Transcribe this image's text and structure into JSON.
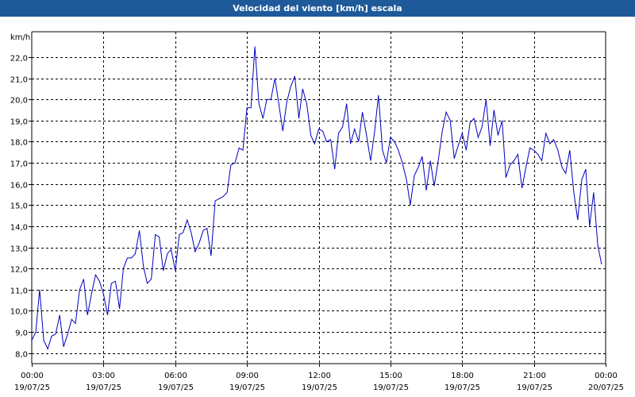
{
  "window": {
    "title": "Velocidad del viento [km/h] escala"
  },
  "chart_data": {
    "type": "line",
    "title": "Velocidad del viento [km/h] escala",
    "ylabel": "km/h",
    "ylim": [
      7.5,
      23.2
    ],
    "yticks": [
      8.0,
      9.0,
      10.0,
      11.0,
      12.0,
      13.0,
      14.0,
      15.0,
      16.0,
      17.0,
      18.0,
      19.0,
      20.0,
      21.0,
      22.0
    ],
    "ytick_labels": [
      "8,0",
      "9,0",
      "10,0",
      "11,0",
      "12,0",
      "13,0",
      "14,0",
      "15,0",
      "16,0",
      "17,0",
      "18,0",
      "19,0",
      "20,0",
      "21,0",
      "22,0"
    ],
    "xlim_hours": [
      0,
      24
    ],
    "xticks": [
      {
        "h": 0,
        "time": "00:00",
        "date": "19/07/25"
      },
      {
        "h": 3,
        "time": "03:00",
        "date": "19/07/25"
      },
      {
        "h": 6,
        "time": "06:00",
        "date": "19/07/25"
      },
      {
        "h": 9,
        "time": "09:00",
        "date": "19/07/25"
      },
      {
        "h": 12,
        "time": "12:00",
        "date": "19/07/25"
      },
      {
        "h": 15,
        "time": "15:00",
        "date": "19/07/25"
      },
      {
        "h": 18,
        "time": "18:00",
        "date": "19/07/25"
      },
      {
        "h": 21,
        "time": "21:00",
        "date": "19/07/25"
      },
      {
        "h": 24,
        "time": "00:00",
        "date": "20/07/25"
      }
    ],
    "grid": true,
    "line_color": "#0000c0",
    "series": [
      {
        "points": [
          [
            0.0,
            8.6
          ],
          [
            0.17,
            9.0
          ],
          [
            0.33,
            11.0
          ],
          [
            0.5,
            8.6
          ],
          [
            0.67,
            8.2
          ],
          [
            0.83,
            8.8
          ],
          [
            1.0,
            8.9
          ],
          [
            1.17,
            9.8
          ],
          [
            1.33,
            8.3
          ],
          [
            1.5,
            8.9
          ],
          [
            1.67,
            9.6
          ],
          [
            1.83,
            9.4
          ],
          [
            2.0,
            11.0
          ],
          [
            2.17,
            11.5
          ],
          [
            2.33,
            9.8
          ],
          [
            2.5,
            10.8
          ],
          [
            2.67,
            11.7
          ],
          [
            2.83,
            11.4
          ],
          [
            3.0,
            10.8
          ],
          [
            3.17,
            9.8
          ],
          [
            3.33,
            11.3
          ],
          [
            3.5,
            11.4
          ],
          [
            3.67,
            10.1
          ],
          [
            3.83,
            12.0
          ],
          [
            4.0,
            12.5
          ],
          [
            4.17,
            12.5
          ],
          [
            4.33,
            12.7
          ],
          [
            4.5,
            13.8
          ],
          [
            4.67,
            12.1
          ],
          [
            4.83,
            11.3
          ],
          [
            5.0,
            11.5
          ],
          [
            5.17,
            13.6
          ],
          [
            5.33,
            13.5
          ],
          [
            5.5,
            11.9
          ],
          [
            5.67,
            12.7
          ],
          [
            5.83,
            12.9
          ],
          [
            6.0,
            11.9
          ],
          [
            6.17,
            13.6
          ],
          [
            6.33,
            13.7
          ],
          [
            6.5,
            14.3
          ],
          [
            6.67,
            13.7
          ],
          [
            6.83,
            12.8
          ],
          [
            7.0,
            13.2
          ],
          [
            7.17,
            13.8
          ],
          [
            7.33,
            13.9
          ],
          [
            7.5,
            12.6
          ],
          [
            7.67,
            15.2
          ],
          [
            7.83,
            15.3
          ],
          [
            8.0,
            15.4
          ],
          [
            8.17,
            15.6
          ],
          [
            8.33,
            16.9
          ],
          [
            8.5,
            17.0
          ],
          [
            8.67,
            17.7
          ],
          [
            8.83,
            17.6
          ],
          [
            9.0,
            19.6
          ],
          [
            9.17,
            19.6
          ],
          [
            9.33,
            22.5
          ],
          [
            9.5,
            19.8
          ],
          [
            9.67,
            19.1
          ],
          [
            9.83,
            20.0
          ],
          [
            10.0,
            20.0
          ],
          [
            10.17,
            21.0
          ],
          [
            10.33,
            19.8
          ],
          [
            10.5,
            18.5
          ],
          [
            10.67,
            19.9
          ],
          [
            10.83,
            20.6
          ],
          [
            11.0,
            21.1
          ],
          [
            11.17,
            19.1
          ],
          [
            11.33,
            20.5
          ],
          [
            11.5,
            19.8
          ],
          [
            11.67,
            18.3
          ],
          [
            11.83,
            17.9
          ],
          [
            12.0,
            18.6
          ],
          [
            12.17,
            18.5
          ],
          [
            12.33,
            18.0
          ],
          [
            12.5,
            18.1
          ],
          [
            12.67,
            16.7
          ],
          [
            12.83,
            18.4
          ],
          [
            13.0,
            18.7
          ],
          [
            13.17,
            19.8
          ],
          [
            13.33,
            17.9
          ],
          [
            13.5,
            18.6
          ],
          [
            13.67,
            18.0
          ],
          [
            13.83,
            19.4
          ],
          [
            14.0,
            18.3
          ],
          [
            14.17,
            17.1
          ],
          [
            14.33,
            18.4
          ],
          [
            14.5,
            20.2
          ],
          [
            14.67,
            17.6
          ],
          [
            14.83,
            17.0
          ],
          [
            15.0,
            18.2
          ],
          [
            15.17,
            18.0
          ],
          [
            15.33,
            17.6
          ],
          [
            15.5,
            17.0
          ],
          [
            15.67,
            16.2
          ],
          [
            15.83,
            15.0
          ],
          [
            16.0,
            16.4
          ],
          [
            16.17,
            16.8
          ],
          [
            16.33,
            17.3
          ],
          [
            16.5,
            15.7
          ],
          [
            16.67,
            17.1
          ],
          [
            16.83,
            15.9
          ],
          [
            17.0,
            17.1
          ],
          [
            17.17,
            18.5
          ],
          [
            17.33,
            19.4
          ],
          [
            17.5,
            19.0
          ],
          [
            17.67,
            17.2
          ],
          [
            17.83,
            17.8
          ],
          [
            18.0,
            18.4
          ],
          [
            18.17,
            17.6
          ],
          [
            18.33,
            18.9
          ],
          [
            18.5,
            19.1
          ],
          [
            18.67,
            18.2
          ],
          [
            18.83,
            18.7
          ],
          [
            19.0,
            20.0
          ],
          [
            19.17,
            17.8
          ],
          [
            19.33,
            19.5
          ],
          [
            19.5,
            18.3
          ],
          [
            19.67,
            19.0
          ],
          [
            19.83,
            16.3
          ],
          [
            20.0,
            16.9
          ],
          [
            20.17,
            17.1
          ],
          [
            20.33,
            17.4
          ],
          [
            20.5,
            15.8
          ],
          [
            20.67,
            16.8
          ],
          [
            20.83,
            17.7
          ],
          [
            21.0,
            17.6
          ],
          [
            21.17,
            17.4
          ],
          [
            21.33,
            17.1
          ],
          [
            21.5,
            18.4
          ],
          [
            21.67,
            17.9
          ],
          [
            21.83,
            18.1
          ],
          [
            22.0,
            17.6
          ],
          [
            22.17,
            16.8
          ],
          [
            22.33,
            16.5
          ],
          [
            22.5,
            17.6
          ],
          [
            22.67,
            15.6
          ],
          [
            22.83,
            14.3
          ],
          [
            23.0,
            16.2
          ],
          [
            23.17,
            16.7
          ],
          [
            23.33,
            14.0
          ],
          [
            23.5,
            15.6
          ],
          [
            23.67,
            13.1
          ],
          [
            23.83,
            12.2
          ]
        ]
      }
    ]
  }
}
